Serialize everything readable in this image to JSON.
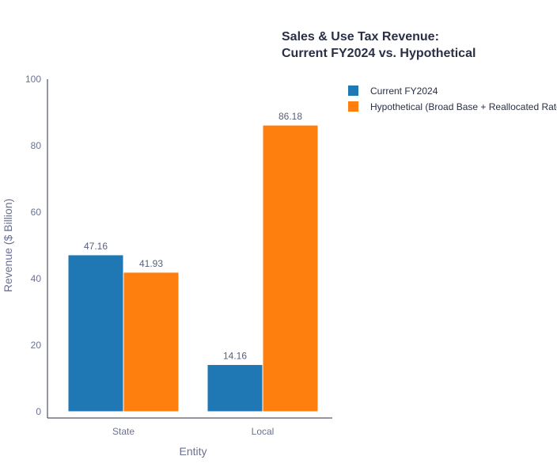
{
  "chart_data": {
    "type": "bar",
    "title_lines": [
      "Sales & Use Tax Revenue:",
      "Current FY2024 vs. Hypothetical"
    ],
    "xlabel": "Entity",
    "ylabel": "Revenue ($ Billion)",
    "categories": [
      "State",
      "Local"
    ],
    "ylim": [
      0,
      100
    ],
    "yticks": [
      0,
      20,
      40,
      60,
      80,
      100
    ],
    "grid": false,
    "legend_position": "top-right",
    "series": [
      {
        "name": "Current FY2024",
        "color": "#1f77b4",
        "values": [
          47.16,
          14.16
        ],
        "value_labels": [
          "47.16",
          "14.16"
        ]
      },
      {
        "name": "Hypothetical (Broad Base + Reallocated Rates)",
        "color": "#ff7f0e",
        "values": [
          41.93,
          86.18
        ],
        "value_labels": [
          "41.93",
          "86.18"
        ]
      }
    ]
  }
}
